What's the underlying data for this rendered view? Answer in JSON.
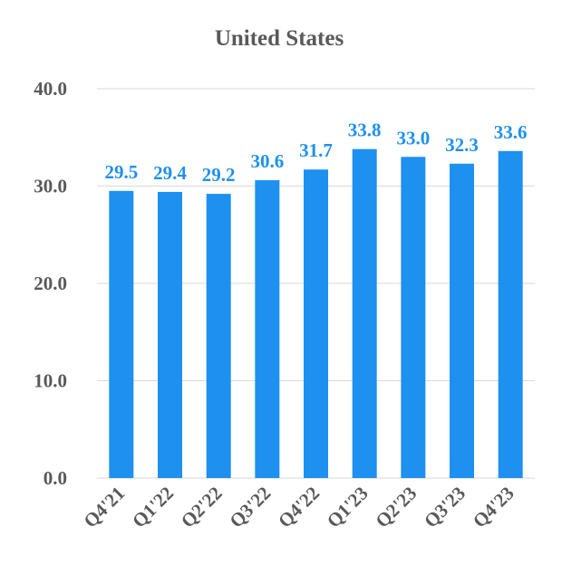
{
  "chart_data": {
    "type": "bar",
    "title": "United States",
    "xlabel": "",
    "ylabel": "",
    "categories": [
      "Q4'21",
      "Q1'22",
      "Q2'22",
      "Q3'22",
      "Q4'22",
      "Q1'23",
      "Q2'23",
      "Q3'23",
      "Q4'23"
    ],
    "values": [
      29.5,
      29.4,
      29.2,
      30.6,
      31.7,
      33.8,
      33.0,
      32.3,
      33.6
    ],
    "ylim": [
      0,
      40
    ],
    "yticks": [
      "0.0",
      "10.0",
      "20.0",
      "30.0",
      "40.0"
    ],
    "data_labels": [
      "29.5",
      "29.4",
      "29.2",
      "30.6",
      "31.7",
      "33.8",
      "33.0",
      "32.3",
      "33.6"
    ],
    "grid": true,
    "legend": "none",
    "colors": {
      "bar": "#1e90f0",
      "data_label": "#1e90f0",
      "text": "#595959",
      "grid": "#d9d9d9"
    }
  }
}
